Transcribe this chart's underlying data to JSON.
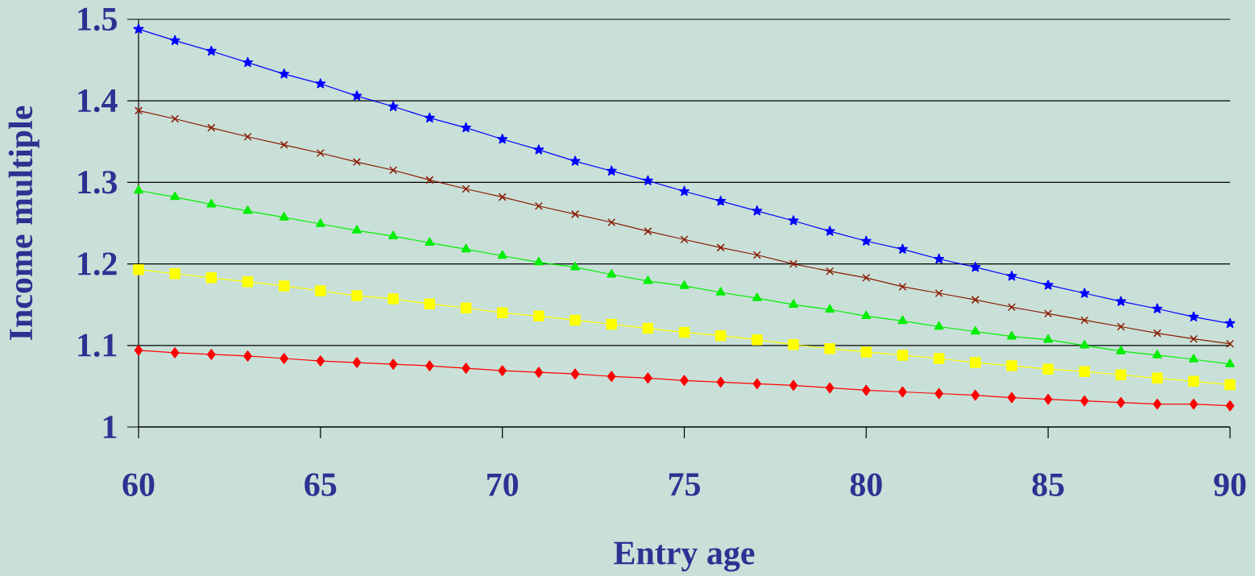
{
  "chart_data": {
    "type": "line",
    "xlabel": "Entry age",
    "ylabel": "Income multiple",
    "x": [
      60,
      61,
      62,
      63,
      64,
      65,
      66,
      67,
      68,
      69,
      70,
      71,
      72,
      73,
      74,
      75,
      76,
      77,
      78,
      79,
      80,
      81,
      82,
      83,
      84,
      85,
      86,
      87,
      88,
      89,
      90
    ],
    "xlim": [
      60,
      90
    ],
    "ylim": [
      1,
      1.5
    ],
    "xticks": [
      60,
      65,
      70,
      75,
      80,
      85,
      90
    ],
    "yticks": [
      1,
      1.1,
      1.2,
      1.3,
      1.4,
      1.5
    ],
    "grid": "y",
    "series": [
      {
        "color": "#0000ff",
        "marker": "star",
        "values": [
          1.488,
          1.474,
          1.461,
          1.447,
          1.433,
          1.421,
          1.406,
          1.393,
          1.379,
          1.367,
          1.353,
          1.34,
          1.326,
          1.314,
          1.302,
          1.289,
          1.277,
          1.265,
          1.253,
          1.24,
          1.228,
          1.218,
          1.206,
          1.196,
          1.185,
          1.174,
          1.164,
          1.154,
          1.145,
          1.135,
          1.127
        ]
      },
      {
        "color": "#8b1a00",
        "marker": "cross",
        "values": [
          1.388,
          1.378,
          1.367,
          1.356,
          1.346,
          1.336,
          1.325,
          1.315,
          1.303,
          1.292,
          1.282,
          1.271,
          1.261,
          1.251,
          1.24,
          1.23,
          1.22,
          1.211,
          1.2,
          1.191,
          1.183,
          1.172,
          1.164,
          1.156,
          1.147,
          1.139,
          1.131,
          1.123,
          1.115,
          1.108,
          1.102
        ]
      },
      {
        "color": "#00ee00",
        "marker": "triangle",
        "values": [
          1.29,
          1.282,
          1.273,
          1.265,
          1.257,
          1.249,
          1.241,
          1.234,
          1.226,
          1.218,
          1.21,
          1.202,
          1.196,
          1.187,
          1.179,
          1.173,
          1.165,
          1.158,
          1.15,
          1.144,
          1.136,
          1.13,
          1.123,
          1.117,
          1.111,
          1.107,
          1.1,
          1.093,
          1.088,
          1.083,
          1.077
        ]
      },
      {
        "color": "#ffff00",
        "marker": "square",
        "values": [
          1.193,
          1.188,
          1.183,
          1.178,
          1.173,
          1.167,
          1.161,
          1.157,
          1.151,
          1.146,
          1.14,
          1.136,
          1.131,
          1.126,
          1.121,
          1.116,
          1.112,
          1.107,
          1.101,
          1.096,
          1.092,
          1.088,
          1.084,
          1.079,
          1.075,
          1.071,
          1.068,
          1.064,
          1.06,
          1.056,
          1.052
        ]
      },
      {
        "color": "#ff0000",
        "marker": "diamond",
        "values": [
          1.094,
          1.091,
          1.089,
          1.087,
          1.084,
          1.081,
          1.079,
          1.077,
          1.075,
          1.072,
          1.069,
          1.067,
          1.065,
          1.062,
          1.06,
          1.057,
          1.055,
          1.053,
          1.051,
          1.048,
          1.045,
          1.043,
          1.041,
          1.039,
          1.036,
          1.034,
          1.032,
          1.03,
          1.028,
          1.028,
          1.026
        ]
      }
    ]
  }
}
